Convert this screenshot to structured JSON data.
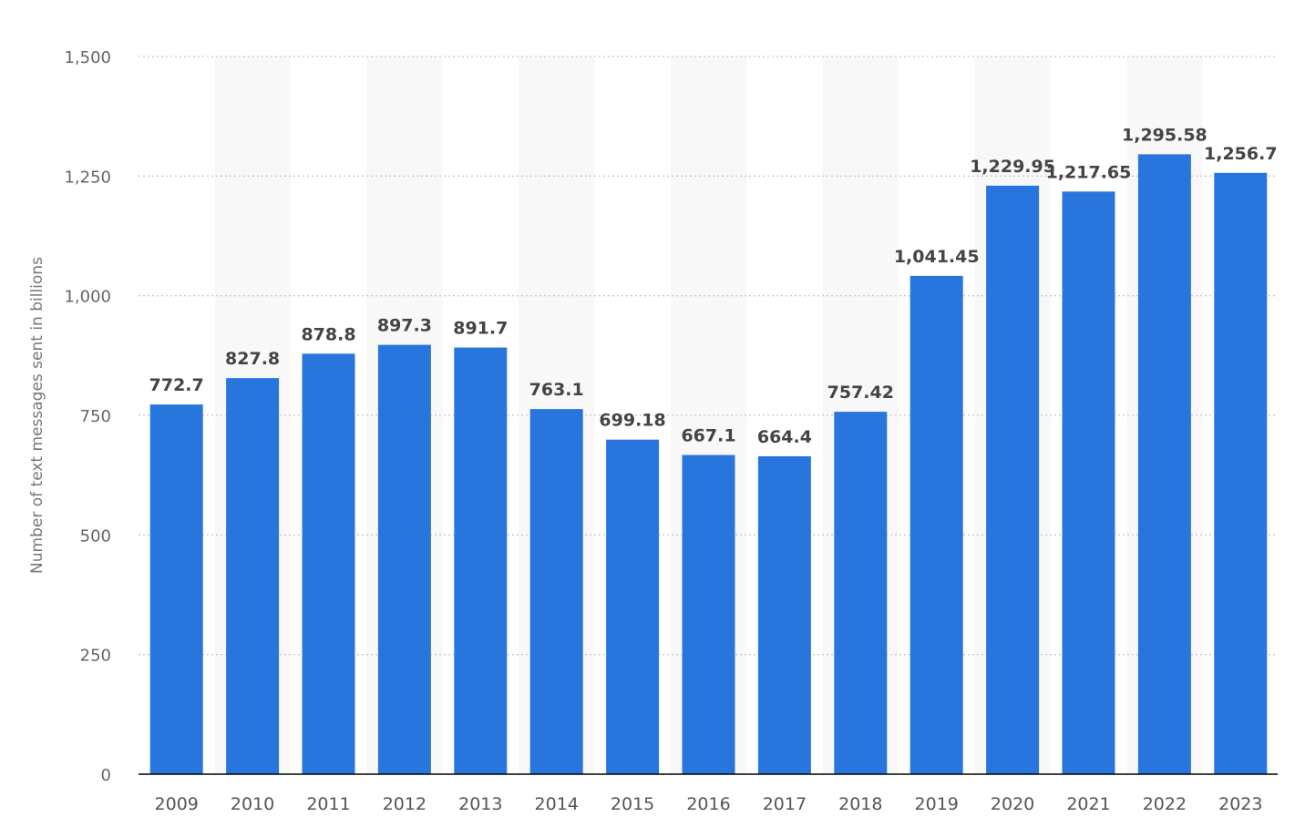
{
  "chart_data": {
    "type": "bar",
    "categories": [
      "2009",
      "2010",
      "2011",
      "2012",
      "2013",
      "2014",
      "2015",
      "2016",
      "2017",
      "2018",
      "2019",
      "2020",
      "2021",
      "2022",
      "2023"
    ],
    "values": [
      772.7,
      827.8,
      878.8,
      897.3,
      891.7,
      763.1,
      699.18,
      667.1,
      664.4,
      757.42,
      1041.45,
      1229.95,
      1217.65,
      1295.58,
      1256.7
    ],
    "data_labels": [
      "772.7",
      "827.8",
      "878.8",
      "897.3",
      "891.7",
      "763.1",
      "699.18",
      "667.1",
      "664.4",
      "757.42",
      "1,041.45",
      "1,229.95",
      "1,217.65",
      "1,295.58",
      "1,256.7"
    ],
    "title": "",
    "xlabel": "",
    "ylabel": "Number of text messages sent in billions",
    "ylim": [
      0,
      1500
    ],
    "yticks": [
      0,
      250,
      500,
      750,
      1000,
      1250,
      1500
    ],
    "ytick_labels": [
      "0",
      "250",
      "500",
      "750",
      "1,000",
      "1,250",
      "1,500"
    ],
    "grid": true,
    "grid_style": "dotted",
    "legend": "none",
    "colors": {
      "bar": "#2876dd",
      "alternate_band": "#f8f8f8",
      "gridline": "#c8c8c8",
      "axis_line": "#000000"
    }
  }
}
